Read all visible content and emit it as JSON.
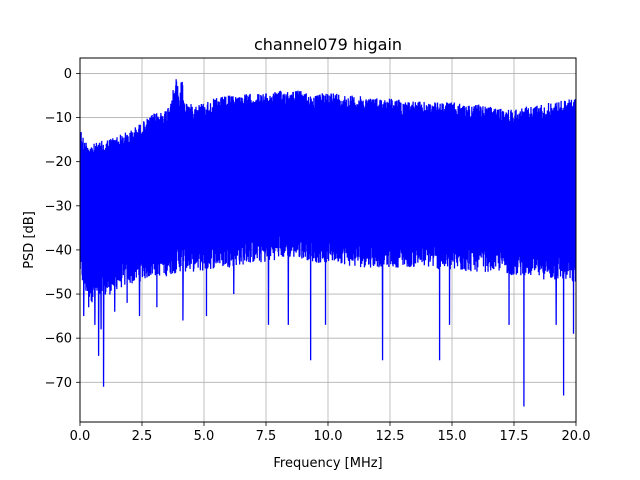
{
  "chart_data": {
    "type": "line",
    "title": "channel079 higain",
    "xlabel": "Frequency [MHz]",
    "ylabel": "PSD [dB]",
    "xlim": [
      0,
      20
    ],
    "ylim": [
      -79,
      3.5
    ],
    "xticks": [
      0,
      2.5,
      5,
      7.5,
      10,
      12.5,
      15,
      17.5,
      20
    ],
    "xtick_labels": [
      "0.0",
      "2.5",
      "5.0",
      "7.5",
      "10.0",
      "12.5",
      "15.0",
      "17.5",
      "20.0"
    ],
    "yticks": [
      0,
      -10,
      -20,
      -30,
      -40,
      -50,
      -60,
      -70
    ],
    "ytick_labels": [
      "0",
      "−10",
      "−20",
      "−30",
      "−40",
      "−50",
      "−60",
      "−70"
    ],
    "grid": true,
    "color": "#0000ff",
    "series": [
      {
        "upper_envelope": {
          "x": [
            0,
            0.2,
            0.5,
            1.0,
            1.5,
            2.0,
            2.5,
            3.0,
            3.5,
            3.8,
            3.9,
            4.0,
            4.1,
            4.2,
            4.5,
            5.0,
            5.5,
            6.0,
            7.0,
            7.5,
            8.0,
            8.5,
            9.0,
            9.5,
            10.0,
            10.5,
            11.0,
            12.0,
            12.5,
            13.0,
            14.0,
            15.0,
            15.5,
            16.0,
            17.0,
            17.5,
            18.0,
            19.0,
            19.5,
            20.0
          ],
          "y": [
            -12,
            -15,
            -16,
            -15,
            -14,
            -13,
            -11,
            -9,
            -8,
            -3,
            -0.5,
            -6,
            0,
            -6,
            -7,
            -6.5,
            -5.5,
            -5,
            -4.5,
            -4.5,
            -4,
            -3.5,
            -4,
            -5,
            -4,
            -4.5,
            -5,
            -5.5,
            -5.5,
            -6,
            -6.5,
            -6.5,
            -7,
            -7,
            -8,
            -8,
            -7.5,
            -6.5,
            -6,
            -5.5
          ]
        },
        "lower_envelope": {
          "x": [
            0,
            0.2,
            0.5,
            1.0,
            1.5,
            2.0,
            2.5,
            3.0,
            3.5,
            4.0,
            4.5,
            5.0,
            5.5,
            6.0,
            7.0,
            7.5,
            8.0,
            8.5,
            9.0,
            9.5,
            10.0,
            10.5,
            11.0,
            12.0,
            12.5,
            13.0,
            14.0,
            15.0,
            15.5,
            16.0,
            17.0,
            17.5,
            18.0,
            19.0,
            19.5,
            20.0
          ],
          "y": [
            -44,
            -48,
            -50,
            -49,
            -47,
            -46,
            -45,
            -44,
            -44,
            -43,
            -43,
            -43,
            -42,
            -42,
            -41,
            -41,
            -40,
            -40,
            -40,
            -41,
            -41,
            -41,
            -42,
            -42,
            -42,
            -42,
            -42,
            -43,
            -43,
            -43,
            -43,
            -44,
            -44,
            -45,
            -45,
            -46
          ]
        },
        "spikes": {
          "x": [
            0.15,
            0.35,
            0.6,
            0.75,
            0.85,
            0.95,
            1.4,
            1.9,
            2.4,
            3.1,
            4.15,
            5.1,
            6.2,
            7.6,
            8.4,
            9.3,
            9.9,
            12.2,
            14.5,
            14.9,
            17.3,
            17.9,
            19.2,
            19.5,
            19.9
          ],
          "y": [
            -55,
            -53,
            -57,
            -64,
            -58,
            -71,
            -54,
            -52,
            -55,
            -53,
            -56,
            -55,
            -50,
            -57,
            -57,
            -65,
            -57,
            -65,
            -65,
            -57,
            -57,
            -75.5,
            -57,
            -73,
            -59
          ]
        }
      }
    ]
  }
}
